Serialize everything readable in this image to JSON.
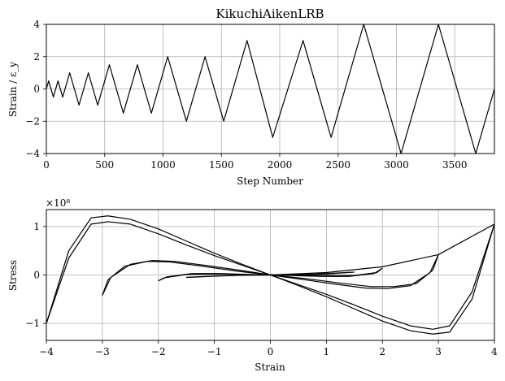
{
  "chart_data": [
    {
      "type": "line",
      "title": "KikuchiAikenLRB",
      "xlabel": "Step Number",
      "ylabel": "Strain / ε_y",
      "xlim": [
        0,
        3840
      ],
      "ylim": [
        -4,
        4
      ],
      "xticks": [
        0,
        500,
        1000,
        1500,
        2000,
        2500,
        3000,
        3500
      ],
      "yticks": [
        -4,
        -2,
        0,
        2,
        4
      ],
      "grid": true,
      "series": [
        {
          "x": [
            0,
            20,
            60,
            100,
            140,
            200,
            280,
            360,
            440,
            540,
            660,
            780,
            900,
            1040,
            1200,
            1360,
            1520,
            1720,
            1940,
            2200,
            2440,
            2720,
            3040,
            3360,
            3680,
            3840
          ],
          "y": [
            0,
            0.5,
            -0.5,
            0.5,
            -0.5,
            1,
            -1,
            1,
            -1,
            1.5,
            -1.5,
            1.5,
            -1.5,
            2,
            -2,
            2,
            -2,
            3,
            -3,
            3,
            -3,
            4,
            -4,
            4,
            -4,
            0
          ]
        }
      ]
    },
    {
      "type": "line",
      "title": "",
      "xlabel": "Strain",
      "ylabel": "Stress",
      "y_multiplier": "×10⁸",
      "xlim": [
        -4,
        4
      ],
      "ylim": [
        -1.35,
        1.35
      ],
      "xticks": [
        -4,
        -3,
        -2,
        -1,
        0,
        1,
        2,
        3,
        4
      ],
      "yticks": [
        -1,
        0,
        1
      ],
      "grid": true,
      "series": [
        {
          "x": [
            -4,
            -3.6,
            -3.2,
            -2.9,
            -2.5,
            -2,
            -1.5,
            -1,
            -0.5,
            0
          ],
          "y": [
            -1.0,
            0.35,
            1.05,
            1.1,
            1.05,
            0.85,
            0.62,
            0.4,
            0.2,
            0
          ]
        },
        {
          "x": [
            -4,
            -3.6,
            -3.2,
            -2.9,
            -2.5,
            -2,
            -1.5,
            -1,
            -0.5,
            0
          ],
          "y": [
            -1.0,
            0.5,
            1.18,
            1.22,
            1.15,
            0.95,
            0.7,
            0.45,
            0.22,
            0
          ]
        },
        {
          "x": [
            4,
            3.6,
            3.2,
            2.9,
            2.5,
            2,
            1.5,
            1,
            0.5,
            0
          ],
          "y": [
            1.05,
            -0.35,
            -1.05,
            -1.12,
            -1.05,
            -0.85,
            -0.62,
            -0.4,
            -0.2,
            0
          ]
        },
        {
          "x": [
            4,
            3.6,
            3.2,
            2.9,
            2.5,
            2,
            1.5,
            1,
            0.5,
            0
          ],
          "y": [
            1.05,
            -0.5,
            -1.18,
            -1.22,
            -1.15,
            -0.95,
            -0.7,
            -0.45,
            -0.22,
            0
          ]
        },
        {
          "x": [
            0,
            1,
            2,
            3,
            4
          ],
          "y": [
            0,
            0.05,
            0.17,
            0.42,
            1.05
          ]
        },
        {
          "x": [
            -3,
            -2.9,
            -2.6,
            -2.2,
            -1.8,
            -1.2,
            -0.6,
            0
          ],
          "y": [
            -0.42,
            -0.1,
            0.18,
            0.28,
            0.27,
            0.18,
            0.08,
            0
          ]
        },
        {
          "x": [
            -3,
            -2.85,
            -2.5,
            -2.1,
            -1.7,
            -1.1,
            -0.5,
            0
          ],
          "y": [
            -0.42,
            -0.05,
            0.22,
            0.3,
            0.28,
            0.19,
            0.09,
            0
          ]
        },
        {
          "x": [
            3,
            2.9,
            2.6,
            2.2,
            1.8,
            1.2,
            0.6,
            0
          ],
          "y": [
            0.42,
            0.1,
            -0.18,
            -0.24,
            -0.24,
            -0.16,
            -0.07,
            0
          ]
        },
        {
          "x": [
            3,
            2.85,
            2.5,
            2.1,
            1.7,
            1.1,
            0.5,
            0
          ],
          "y": [
            0.42,
            0.05,
            -0.22,
            -0.28,
            -0.27,
            -0.18,
            -0.08,
            0
          ]
        },
        {
          "x": [
            -2,
            -1.9,
            -1.5,
            -1,
            -0.5,
            0
          ],
          "y": [
            -0.12,
            -0.06,
            0.01,
            0.02,
            0.01,
            0
          ]
        },
        {
          "x": [
            -2,
            -1.85,
            -1.4,
            -0.9,
            -0.4,
            0
          ],
          "y": [
            -0.12,
            -0.04,
            0.03,
            0.03,
            0.01,
            0
          ]
        },
        {
          "x": [
            2,
            1.9,
            1.5,
            1,
            0.5,
            0
          ],
          "y": [
            0.14,
            0.05,
            -0.01,
            -0.01,
            -0.005,
            0
          ]
        },
        {
          "x": [
            2,
            1.85,
            1.4,
            0.9,
            0.4,
            0
          ],
          "y": [
            0.14,
            0.03,
            -0.03,
            -0.03,
            -0.01,
            0
          ]
        },
        {
          "x": [
            -1.5,
            -1,
            -0.5,
            0,
            0.5,
            1,
            1.5
          ],
          "y": [
            -0.05,
            -0.02,
            -0.005,
            0,
            0.005,
            0.03,
            0.06
          ]
        },
        {
          "x": [
            1.5,
            1,
            0.5,
            0,
            -0.5,
            -1,
            -1.5
          ],
          "y": [
            0.06,
            0.02,
            0.005,
            0,
            -0.005,
            -0.025,
            -0.05
          ]
        }
      ]
    }
  ]
}
